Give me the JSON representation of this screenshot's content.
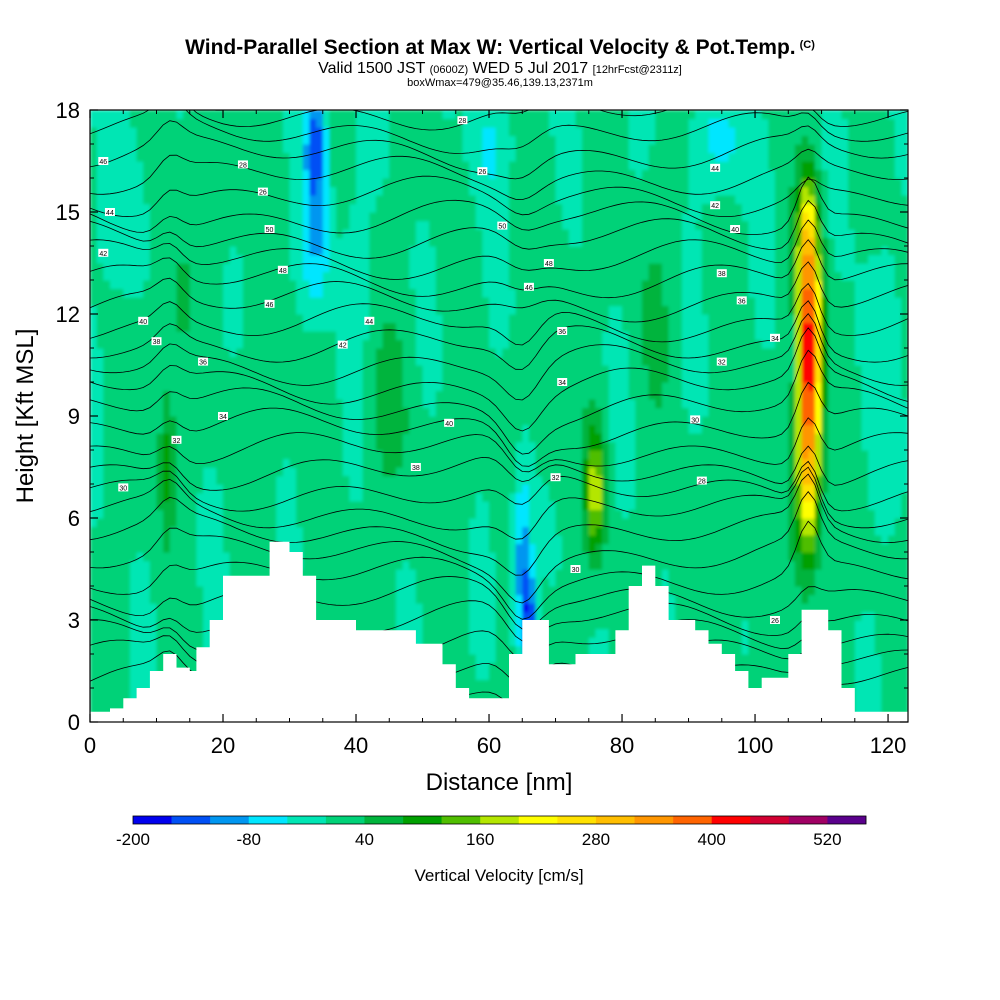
{
  "header": {
    "title": "Wind-Parallel Section at Max W: Vertical Velocity & Pot.Temp.",
    "copyright": "(C)",
    "valid_prefix": "Valid 1500 JST",
    "valid_utc": "(0600Z)",
    "valid_date": "WED 5 Jul 2017",
    "forecast": "[12hrFcst@2311z]",
    "boxwmax": "boxWmax=479@35.46,139.13,2371m"
  },
  "chart_data": {
    "type": "heatmap",
    "xlabel": "Distance [nm]",
    "ylabel": "Height [Kft MSL]",
    "xlim": [
      0,
      123
    ],
    "ylim": [
      0,
      18
    ],
    "x_ticks": [
      "0",
      "20",
      "40",
      "60",
      "80",
      "100",
      "120"
    ],
    "y_ticks": [
      "0",
      "3",
      "6",
      "9",
      "12",
      "15",
      "18"
    ],
    "colorbar": {
      "label": "Vertical Velocity [cm/s]",
      "tick_labels": [
        "-200",
        "-80",
        "40",
        "160",
        "280",
        "400",
        "520"
      ],
      "levels": [
        -200,
        -160,
        -120,
        -80,
        -40,
        0,
        40,
        80,
        120,
        160,
        200,
        240,
        280,
        320,
        360,
        400,
        440,
        480,
        520,
        560
      ],
      "colors": [
        "#0000ee",
        "#0050f5",
        "#0096f0",
        "#00e6ff",
        "#00e6b4",
        "#00d278",
        "#00b43c",
        "#00a000",
        "#50be00",
        "#b4e600",
        "#ffff00",
        "#ffe100",
        "#ffbe00",
        "#ff9600",
        "#ff6400",
        "#ff0000",
        "#d20032",
        "#a00064",
        "#5a008c"
      ]
    },
    "terrain_profile": {
      "x": [
        0,
        3,
        5,
        7,
        9,
        11,
        13,
        15,
        16,
        18,
        20,
        22,
        25,
        27,
        30,
        32,
        34,
        36,
        38,
        40,
        42,
        45,
        47,
        49,
        51,
        53,
        55,
        57,
        59,
        61,
        63,
        65,
        67,
        69,
        71,
        73,
        75,
        77,
        79,
        81,
        83,
        85,
        87,
        89,
        91,
        93,
        95,
        97,
        99,
        101,
        103,
        105,
        107,
        109,
        111,
        113,
        115,
        117,
        119,
        121,
        123
      ],
      "height_kft": [
        0.3,
        0.4,
        0.7,
        1.0,
        1.5,
        2.0,
        1.6,
        1.5,
        2.2,
        3.0,
        4.3,
        4.3,
        4.3,
        5.3,
        5.0,
        4.3,
        3.0,
        3.0,
        3.0,
        2.7,
        2.7,
        2.7,
        2.7,
        2.3,
        2.3,
        1.7,
        1.0,
        0.7,
        0.7,
        0.7,
        2.0,
        3.0,
        3.0,
        1.7,
        1.7,
        2.0,
        2.0,
        2.0,
        2.7,
        4.0,
        4.6,
        4.0,
        3.0,
        3.0,
        2.7,
        2.3,
        2.0,
        1.5,
        1.0,
        1.3,
        1.3,
        2.0,
        3.3,
        3.3,
        2.7,
        1.0,
        0.3,
        0.3,
        0.3,
        0.3,
        0.3
      ]
    },
    "updraft_max": {
      "x": 108,
      "y": 11,
      "value": 479
    },
    "contour_labels": [
      "46",
      "44",
      "42",
      "40",
      "38",
      "36",
      "34",
      "32",
      "30",
      "28",
      "26",
      "50",
      "48"
    ]
  }
}
